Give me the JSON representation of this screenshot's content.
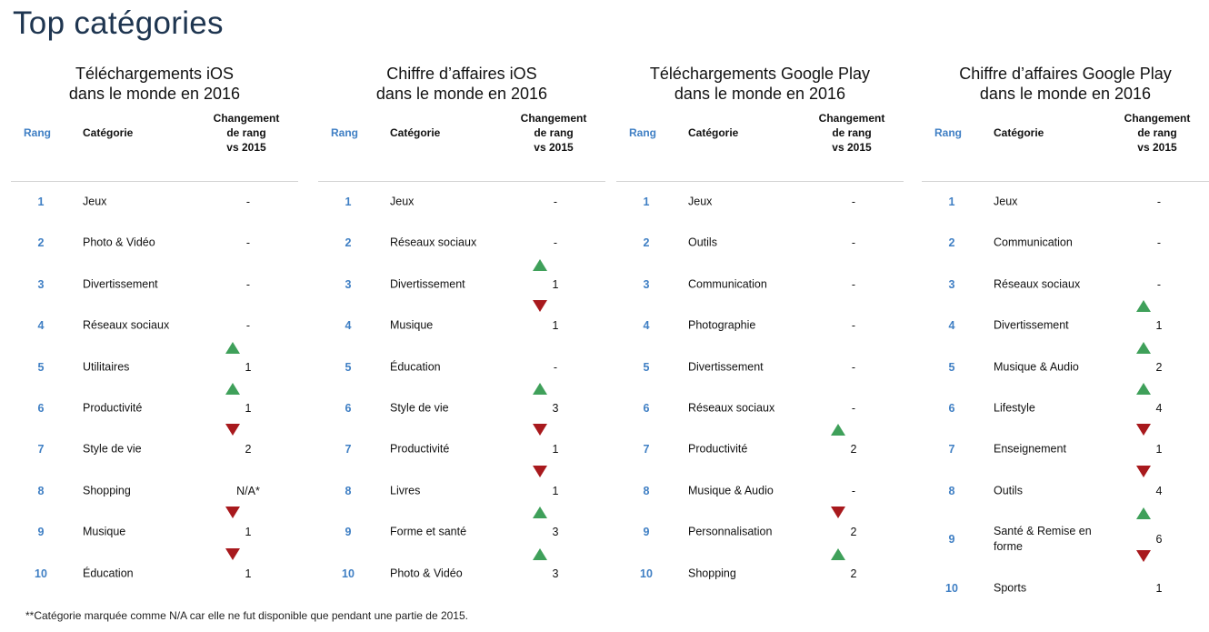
{
  "page": {
    "title": "Top catégories",
    "footnote": "**Catégorie marquée comme N/A car elle ne fut disponible que pendant une partie de 2015."
  },
  "headers": {
    "rank": "Rang",
    "category": "Catégorie",
    "change_line1": "Changement",
    "change_line2": "de rang",
    "change_line3": "vs 2015"
  },
  "colors": {
    "rank": "#3f7fc4",
    "up": "#3fa05a",
    "down": "#a8191d",
    "title": "#1e3550"
  },
  "panels": [
    {
      "title_line1": "Téléchargements iOS",
      "title_line2": "dans le monde en 2016",
      "rows": [
        {
          "rank": "1",
          "category": "Jeux",
          "change": "-",
          "arrow": ""
        },
        {
          "rank": "2",
          "category": "Photo & Vidéo",
          "change": "-",
          "arrow": ""
        },
        {
          "rank": "3",
          "category": "Divertissement",
          "change": "-",
          "arrow": ""
        },
        {
          "rank": "4",
          "category": "Réseaux sociaux",
          "change": "-",
          "arrow": ""
        },
        {
          "rank": "5",
          "category": "Utilitaires",
          "change": "1",
          "arrow": "up"
        },
        {
          "rank": "6",
          "category": "Productivité",
          "change": "1",
          "arrow": "up"
        },
        {
          "rank": "7",
          "category": "Style de vie",
          "change": "2",
          "arrow": "down"
        },
        {
          "rank": "8",
          "category": "Shopping",
          "change": "N/A*",
          "arrow": ""
        },
        {
          "rank": "9",
          "category": "Musique",
          "change": "1",
          "arrow": "down"
        },
        {
          "rank": "10",
          "category": "Éducation",
          "change": "1",
          "arrow": "down"
        }
      ]
    },
    {
      "title_line1": "Chiffre d’affaires iOS",
      "title_line2": "dans le monde en 2016",
      "rows": [
        {
          "rank": "1",
          "category": "Jeux",
          "change": "-",
          "arrow": ""
        },
        {
          "rank": "2",
          "category": "Réseaux sociaux",
          "change": "-",
          "arrow": ""
        },
        {
          "rank": "3",
          "category": "Divertissement",
          "change": "1",
          "arrow": "up"
        },
        {
          "rank": "4",
          "category": "Musique",
          "change": "1",
          "arrow": "down"
        },
        {
          "rank": "5",
          "category": "Éducation",
          "change": "-",
          "arrow": ""
        },
        {
          "rank": "6",
          "category": "Style de vie",
          "change": "3",
          "arrow": "up"
        },
        {
          "rank": "7",
          "category": "Productivité",
          "change": "1",
          "arrow": "down"
        },
        {
          "rank": "8",
          "category": "Livres",
          "change": "1",
          "arrow": "down"
        },
        {
          "rank": "9",
          "category": "Forme et santé",
          "change": "3",
          "arrow": "up"
        },
        {
          "rank": "10",
          "category": "Photo & Vidéo",
          "change": "3",
          "arrow": "up"
        }
      ]
    },
    {
      "title_line1": "Téléchargements Google Play",
      "title_line2": "dans le monde en 2016",
      "rows": [
        {
          "rank": "1",
          "category": "Jeux",
          "change": "-",
          "arrow": ""
        },
        {
          "rank": "2",
          "category": "Outils",
          "change": "-",
          "arrow": ""
        },
        {
          "rank": "3",
          "category": "Communication",
          "change": "-",
          "arrow": ""
        },
        {
          "rank": "4",
          "category": "Photographie",
          "change": "-",
          "arrow": ""
        },
        {
          "rank": "5",
          "category": "Divertissement",
          "change": "-",
          "arrow": ""
        },
        {
          "rank": "6",
          "category": "Réseaux sociaux",
          "change": "-",
          "arrow": ""
        },
        {
          "rank": "7",
          "category": "Productivité",
          "change": "2",
          "arrow": "up"
        },
        {
          "rank": "8",
          "category": "Musique & Audio",
          "change": "-",
          "arrow": ""
        },
        {
          "rank": "9",
          "category": "Personnalisation",
          "change": "2",
          "arrow": "down"
        },
        {
          "rank": "10",
          "category": "Shopping",
          "change": "2",
          "arrow": "up"
        }
      ]
    },
    {
      "title_line1": "Chiffre d’affaires Google Play",
      "title_line2": "dans le monde en 2016",
      "rows": [
        {
          "rank": "1",
          "category": "Jeux",
          "change": "-",
          "arrow": ""
        },
        {
          "rank": "2",
          "category": "Communication",
          "change": "-",
          "arrow": ""
        },
        {
          "rank": "3",
          "category": "Réseaux sociaux",
          "change": "-",
          "arrow": ""
        },
        {
          "rank": "4",
          "category": "Divertissement",
          "change": "1",
          "arrow": "up"
        },
        {
          "rank": "5",
          "category": "Musique & Audio",
          "change": "2",
          "arrow": "up"
        },
        {
          "rank": "6",
          "category": "Lifestyle",
          "change": "4",
          "arrow": "up"
        },
        {
          "rank": "7",
          "category": "Enseignement",
          "change": "1",
          "arrow": "down"
        },
        {
          "rank": "8",
          "category": "Outils",
          "change": "4",
          "arrow": "down"
        },
        {
          "rank": "9",
          "category": "Santé & Remise en forme",
          "change": "6",
          "arrow": "up-down"
        },
        {
          "rank": "10",
          "category": "Sports",
          "change": "1",
          "arrow": ""
        }
      ]
    }
  ]
}
